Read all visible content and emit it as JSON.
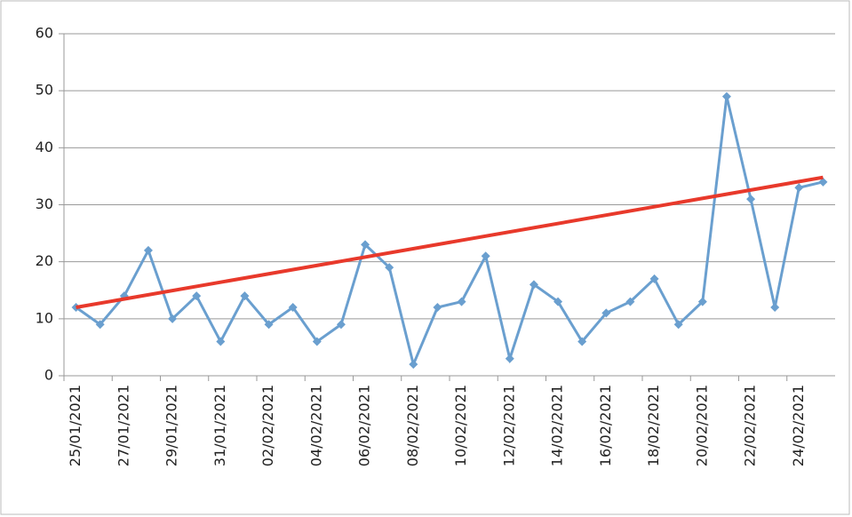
{
  "chart_data": {
    "type": "line",
    "categories": [
      "25/01/2021",
      null,
      "27/01/2021",
      null,
      "29/01/2021",
      null,
      "31/01/2021",
      null,
      "02/02/2021",
      null,
      "04/02/2021",
      null,
      "06/02/2021",
      null,
      "08/02/2021",
      null,
      "10/02/2021",
      null,
      "12/02/2021",
      null,
      "14/02/2021",
      null,
      "16/02/2021",
      null,
      "18/02/2021",
      null,
      "20/02/2021",
      null,
      "22/02/2021",
      null,
      "24/02/2021",
      null
    ],
    "series": [
      {
        "color": "#6a9fcf",
        "values": [
          12,
          9,
          14,
          22,
          10,
          14,
          6,
          14,
          9,
          12,
          6,
          9,
          23,
          19,
          2,
          12,
          13,
          21,
          3,
          16,
          13,
          6,
          11,
          13,
          17,
          9,
          13,
          49,
          31,
          12,
          33,
          34
        ]
      }
    ],
    "trendline": {
      "color": "#e8392b",
      "values": [
        12,
        34.8
      ]
    },
    "ylim": [
      0,
      60
    ],
    "yticks": [
      0,
      10,
      20,
      30,
      40,
      50,
      60
    ],
    "grid": true
  }
}
